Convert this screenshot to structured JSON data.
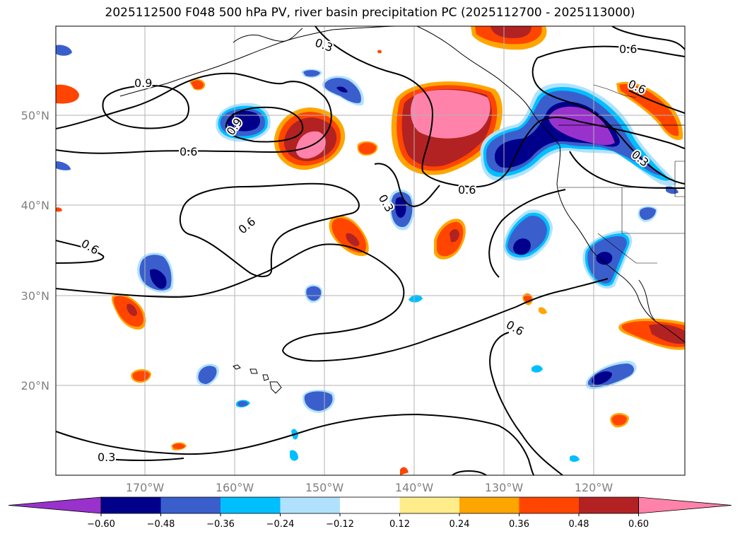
{
  "title": "2025112500 F048 500 hPa PV, river basin precipitation PC (2025112700 - 2025113000)",
  "map": {
    "lat_labels": [
      "50°N",
      "40°N",
      "30°N",
      "20°N"
    ],
    "lon_labels": [
      "170°W",
      "160°W",
      "150°W",
      "140°W",
      "130°W",
      "120°W"
    ],
    "pv_contour_labels": [
      "0.3",
      "0.6",
      "0.9",
      "0.6",
      "0.9",
      "0.6",
      "0.6",
      "0.3",
      "0.6",
      "0.6",
      "0.6",
      "0.3",
      "0.3"
    ],
    "pv_contour_levels": [
      "0.3",
      "0.6",
      "0.9"
    ]
  },
  "colorbar": {
    "ticks": [
      "−0.60",
      "−0.48",
      "−0.36",
      "−0.24",
      "−0.12",
      "0.12",
      "0.24",
      "0.36",
      "0.48",
      "0.60"
    ],
    "colors": [
      "#9932cc",
      "#00008b",
      "#3a5fcd",
      "#00bfff",
      "#b0e2ff",
      "#ffffff",
      "#ffec8b",
      "#ffa500",
      "#ff4500",
      "#b22222",
      "#ff82ab"
    ]
  }
}
